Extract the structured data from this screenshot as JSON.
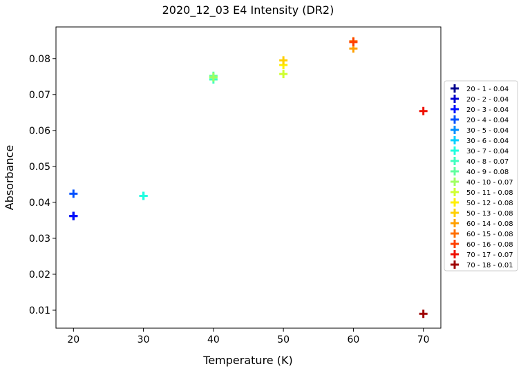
{
  "chart_data": {
    "type": "scatter",
    "title": "2020_12_03 E4 Intensity (DR2)",
    "xlabel": "Temperature (K)",
    "ylabel": "Absorbance",
    "xlim": [
      17.5,
      72.5
    ],
    "ylim": [
      0.005,
      0.0888
    ],
    "xticks": [
      20,
      30,
      40,
      50,
      60,
      70
    ],
    "yticks": [
      0.01,
      0.02,
      0.03,
      0.04,
      0.05,
      0.06,
      0.07,
      0.08
    ],
    "grid": false,
    "legend_position": "right",
    "marker": "plus",
    "series": [
      {
        "name": "20 - 1 - 0.04",
        "color": "#00008f",
        "points": [
          [
            20,
            0.0362
          ]
        ]
      },
      {
        "name": "20 - 2 - 0.04",
        "color": "#0000cf",
        "points": [
          [
            20,
            0.0362
          ]
        ]
      },
      {
        "name": "20 - 3 - 0.04",
        "color": "#0010ff",
        "points": [
          [
            20,
            0.0362
          ]
        ]
      },
      {
        "name": "20 - 4 - 0.04",
        "color": "#0050ff",
        "points": [
          [
            20,
            0.0424
          ]
        ]
      },
      {
        "name": "30 - 5 - 0.04",
        "color": "#0090ff",
        "points": [
          [
            30,
            0.0418
          ]
        ]
      },
      {
        "name": "30 - 6 - 0.04",
        "color": "#00d0ff",
        "points": [
          [
            30,
            0.0418
          ]
        ]
      },
      {
        "name": "30 - 7 - 0.04",
        "color": "#20ffdf",
        "points": [
          [
            30,
            0.0418
          ]
        ]
      },
      {
        "name": "40 - 8 - 0.07",
        "color": "#40ffbf",
        "points": [
          [
            40,
            0.0742
          ]
        ]
      },
      {
        "name": "40 - 9 - 0.08",
        "color": "#60ff9f",
        "points": [
          [
            40,
            0.0752
          ]
        ]
      },
      {
        "name": "40 - 10 - 0.07",
        "color": "#9fff60",
        "points": [
          [
            40,
            0.0748
          ]
        ]
      },
      {
        "name": "50 - 11 - 0.08",
        "color": "#cfff30",
        "points": [
          [
            50,
            0.0757
          ]
        ]
      },
      {
        "name": "50 - 12 - 0.08",
        "color": "#ffef00",
        "points": [
          [
            50,
            0.0782
          ]
        ]
      },
      {
        "name": "50 - 13 - 0.08",
        "color": "#ffcf00",
        "points": [
          [
            50,
            0.0795
          ]
        ]
      },
      {
        "name": "60 - 14 - 0.08",
        "color": "#ffa000",
        "points": [
          [
            60,
            0.0828
          ]
        ]
      },
      {
        "name": "60 - 15 - 0.08",
        "color": "#ff7000",
        "points": [
          [
            60,
            0.0848
          ]
        ]
      },
      {
        "name": "60 - 16 - 0.08",
        "color": "#ff4000",
        "points": [
          [
            60,
            0.0846
          ]
        ]
      },
      {
        "name": "70 - 17 - 0.07",
        "color": "#ef1000",
        "points": [
          [
            70,
            0.0654
          ]
        ]
      },
      {
        "name": "70 - 18 - 0.01",
        "color": "#9f0000",
        "points": [
          [
            70,
            0.009
          ]
        ]
      }
    ]
  }
}
